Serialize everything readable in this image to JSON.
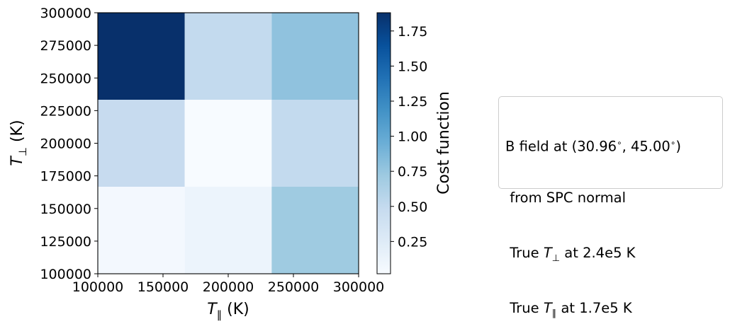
{
  "chart_data": {
    "type": "heatmap",
    "x_edges": [
      100000,
      166667,
      233333,
      300000
    ],
    "y_edges": [
      100000,
      166667,
      233333,
      300000
    ],
    "values": [
      [
        0.06,
        0.12,
        0.71
      ],
      [
        0.48,
        0.02,
        0.5
      ],
      [
        1.88,
        0.5,
        0.78
      ]
    ],
    "xlabel_main": "T",
    "xlabel_sub": "∥",
    "xlabel_unit": " (K)",
    "ylabel_main": "T",
    "ylabel_sub": "⊥",
    "ylabel_unit": " (K)",
    "xlim": [
      100000,
      300000
    ],
    "ylim": [
      100000,
      300000
    ],
    "x_ticks": [
      100000,
      150000,
      200000,
      250000,
      300000
    ],
    "y_ticks": [
      100000,
      125000,
      150000,
      175000,
      200000,
      225000,
      250000,
      275000,
      300000
    ],
    "colorbar": {
      "label": "Cost function",
      "ticks": [
        0.25,
        0.5,
        0.75,
        1.0,
        1.25,
        1.5,
        1.75
      ],
      "tick_labels": [
        "0.25",
        "0.50",
        "0.75",
        "1.00",
        "1.25",
        "1.50",
        "1.75"
      ],
      "range": [
        0.02,
        1.88
      ],
      "colormap": "Blues"
    }
  },
  "info_box": {
    "line1_lead": "B field at (30.96",
    "line1_deg1": "∘",
    "line1_mid": ", 45.00",
    "line1_deg2": "∘",
    "line1_end": ")",
    "line2": " from SPC normal",
    "line3_lead": " True ",
    "line3_sym": "T",
    "line3_sub": "⊥",
    "line3_end": " at 2.4e5 K",
    "line4_lead": " True ",
    "line4_sym": "T",
    "line4_sub": "∥",
    "line4_end": " at 1.7e5 K"
  }
}
